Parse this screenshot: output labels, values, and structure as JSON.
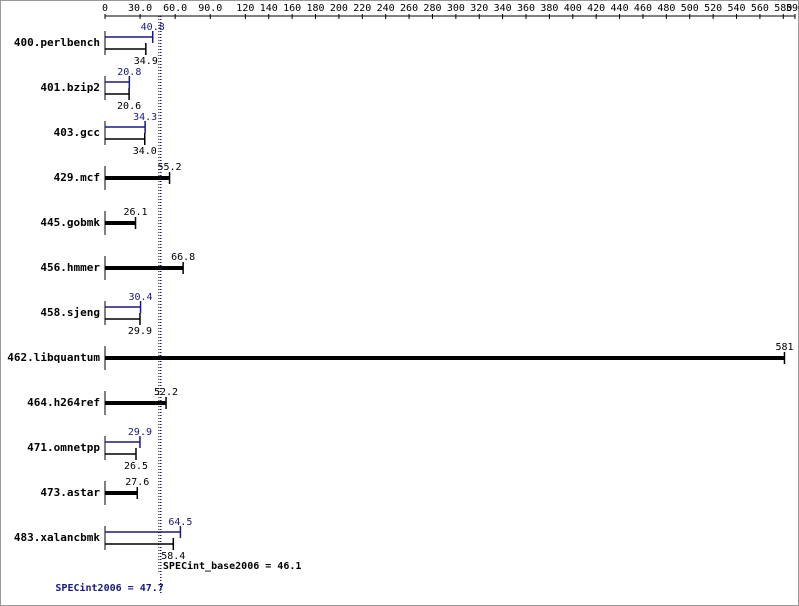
{
  "chart_data": {
    "type": "bar",
    "orientation": "horizontal",
    "categories": [
      "400.perlbench",
      "401.bzip2",
      "403.gcc",
      "429.mcf",
      "445.gobmk",
      "456.hmmer",
      "458.sjeng",
      "462.libquantum",
      "464.h264ref",
      "471.omnetpp",
      "473.astar",
      "483.xalancbmk"
    ],
    "series": [
      {
        "color": "#000000",
        "values": [
          34.9,
          20.6,
          34.0,
          55.2,
          26.1,
          66.8,
          29.9,
          581,
          52.2,
          26.5,
          27.6,
          58.4
        ],
        "value_labels": [
          "34.9",
          "20.6",
          "34.0",
          "55.2",
          "26.1",
          "66.8",
          "29.9",
          "581",
          "52.2",
          "26.5",
          "27.6",
          "58.4"
        ],
        "mean": {
          "value": 46.1,
          "label": "SPECint_base2006 = 46.1"
        }
      },
      {
        "color": "#191980",
        "values": [
          40.8,
          20.8,
          34.3,
          null,
          null,
          null,
          30.4,
          null,
          null,
          29.9,
          null,
          64.5
        ],
        "value_labels": [
          "40.8",
          "20.8",
          "34.3",
          null,
          null,
          null,
          "30.4",
          null,
          null,
          "29.9",
          null,
          "64.5"
        ],
        "mean": {
          "value": 47.7,
          "label": "SPECint2006 = 47.7"
        }
      }
    ],
    "xlim": [
      0,
      590
    ],
    "xticks": [
      0,
      {
        "value": 30,
        "label": "30.0"
      },
      {
        "value": 60,
        "label": "60.0"
      },
      {
        "value": 90,
        "label": "90.0"
      },
      120,
      140,
      160,
      180,
      200,
      220,
      240,
      260,
      280,
      300,
      320,
      340,
      360,
      380,
      400,
      420,
      440,
      460,
      480,
      500,
      520,
      540,
      560,
      580,
      590
    ]
  }
}
